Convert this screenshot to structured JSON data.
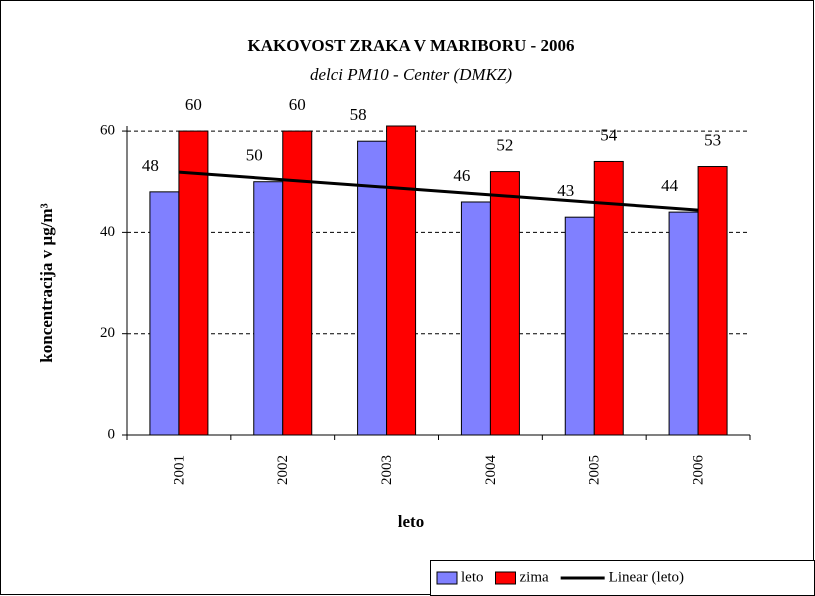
{
  "chart_data": {
    "type": "bar",
    "title": "KAKOVOST ZRAKA V MARIBORU - 2006",
    "subtitle": "delci PM10 - Center (DMKZ)",
    "x_label": "leto",
    "y_label": "koncentracija v µg/m³",
    "categories": [
      "2001",
      "2002",
      "2003",
      "2004",
      "2005",
      "2006"
    ],
    "series": [
      {
        "name": "leto",
        "color": "#8080ff",
        "values": [
          48,
          50,
          58,
          46,
          43,
          44
        ]
      },
      {
        "name": "zima",
        "color": "#ff0000",
        "values": [
          60,
          60,
          61,
          52,
          54,
          53
        ],
        "value_labels": [
          "60",
          "60",
          null,
          "52",
          "54",
          "53"
        ]
      },
      {
        "name": "Linear (leto)",
        "type": "line",
        "color": "#000000",
        "values": [
          51.9,
          50.4,
          48.9,
          47.4,
          45.9,
          44.4
        ]
      }
    ],
    "ylim": [
      0,
      61
    ],
    "yticks": [
      0,
      20,
      40,
      60
    ],
    "grid": true,
    "legend": "bottom-right"
  }
}
